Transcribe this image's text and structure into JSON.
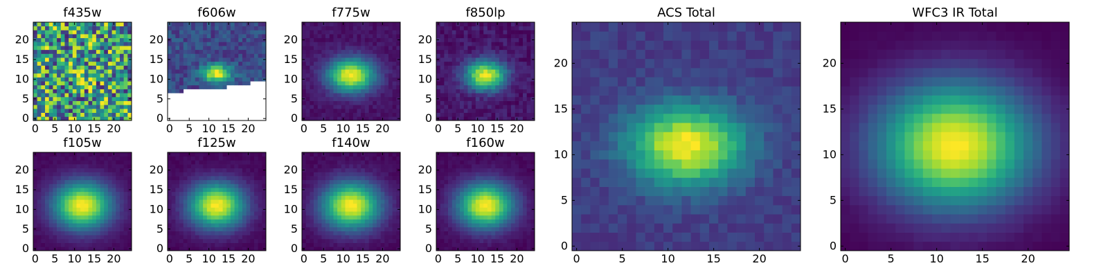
{
  "figure": {
    "colormap": "viridis",
    "colormap_stops": [
      "#440154",
      "#482878",
      "#3e4989",
      "#31688e",
      "#26828e",
      "#1f9e89",
      "#35b779",
      "#6ece58",
      "#b5de2b",
      "#fde725"
    ],
    "missing_value_color": "#ffffff"
  },
  "chart_data": [
    {
      "type": "heatmap",
      "title": "f435w",
      "xlim": [
        0,
        24
      ],
      "ylim": [
        0,
        24
      ],
      "xticks": [
        "0",
        "5",
        "10",
        "15",
        "20"
      ],
      "yticks": [
        "0",
        "5",
        "10",
        "15",
        "20"
      ],
      "grid_size": [
        25,
        25
      ],
      "peak": [
        12,
        11
      ],
      "spread": [
        2.2,
        1.6
      ],
      "noise": 0.9,
      "base": 0.55,
      "amplitude": 0.2,
      "missing_region": null,
      "seed": 7
    },
    {
      "type": "heatmap",
      "title": "f606w",
      "xlim": [
        0,
        24
      ],
      "ylim": [
        0,
        24
      ],
      "xticks": [
        "0",
        "5",
        "10",
        "15",
        "20"
      ],
      "yticks": [
        "0",
        "5",
        "10",
        "15",
        "20"
      ],
      "grid_size": [
        25,
        25
      ],
      "peak": [
        12,
        11.5
      ],
      "spread": [
        2.6,
        1.5
      ],
      "noise": 0.22,
      "base": 0.22,
      "amplitude": 0.78,
      "missing_region": {
        "below_row_by_column": [
          7,
          7,
          7,
          7,
          8,
          8,
          8,
          8,
          8,
          8,
          8,
          8,
          8,
          8,
          8,
          9,
          9,
          9,
          9,
          9,
          9,
          10,
          10,
          10,
          10
        ]
      },
      "seed": 11
    },
    {
      "type": "heatmap",
      "title": "f775w",
      "xlim": [
        0,
        24
      ],
      "ylim": [
        0,
        24
      ],
      "xticks": [
        "0",
        "5",
        "10",
        "15",
        "20"
      ],
      "yticks": [
        "0",
        "5",
        "10",
        "15",
        "20"
      ],
      "grid_size": [
        25,
        25
      ],
      "peak": [
        12,
        11
      ],
      "spread": [
        4.2,
        3.0
      ],
      "noise": 0.08,
      "base": 0.05,
      "amplitude": 0.95,
      "missing_region": null,
      "seed": 23
    },
    {
      "type": "heatmap",
      "title": "f850lp",
      "xlim": [
        0,
        24
      ],
      "ylim": [
        0,
        24
      ],
      "xticks": [
        "0",
        "5",
        "10",
        "15",
        "20"
      ],
      "yticks": [
        "0",
        "5",
        "10",
        "15",
        "20"
      ],
      "grid_size": [
        25,
        25
      ],
      "peak": [
        12,
        11
      ],
      "spread": [
        3.6,
        2.6
      ],
      "noise": 0.13,
      "base": 0.06,
      "amplitude": 0.92,
      "missing_region": null,
      "seed": 31
    },
    {
      "type": "heatmap",
      "title": "f105w",
      "xlim": [
        0,
        24
      ],
      "ylim": [
        0,
        24
      ],
      "xticks": [
        "0",
        "5",
        "10",
        "15",
        "20"
      ],
      "yticks": [
        "0",
        "5",
        "10",
        "15",
        "20"
      ],
      "grid_size": [
        25,
        25
      ],
      "peak": [
        12,
        11
      ],
      "spread": [
        5.2,
        4.2
      ],
      "noise": 0.04,
      "base": 0.02,
      "amplitude": 0.98,
      "missing_region": null,
      "seed": 41
    },
    {
      "type": "heatmap",
      "title": "f125w",
      "xlim": [
        0,
        24
      ],
      "ylim": [
        0,
        24
      ],
      "xticks": [
        "0",
        "5",
        "10",
        "15",
        "20"
      ],
      "yticks": [
        "0",
        "5",
        "10",
        "15",
        "20"
      ],
      "grid_size": [
        25,
        25
      ],
      "peak": [
        12,
        11
      ],
      "spread": [
        5.0,
        4.0
      ],
      "noise": 0.05,
      "base": 0.02,
      "amplitude": 0.98,
      "missing_region": null,
      "seed": 53
    },
    {
      "type": "heatmap",
      "title": "f140w",
      "xlim": [
        0,
        24
      ],
      "ylim": [
        0,
        24
      ],
      "xticks": [
        "0",
        "5",
        "10",
        "15",
        "20"
      ],
      "yticks": [
        "0",
        "5",
        "10",
        "15",
        "20"
      ],
      "grid_size": [
        25,
        25
      ],
      "peak": [
        12,
        11
      ],
      "spread": [
        5.2,
        4.2
      ],
      "noise": 0.05,
      "base": 0.02,
      "amplitude": 0.98,
      "missing_region": null,
      "seed": 67
    },
    {
      "type": "heatmap",
      "title": "f160w",
      "xlim": [
        0,
        24
      ],
      "ylim": [
        0,
        24
      ],
      "xticks": [
        "0",
        "5",
        "10",
        "15",
        "20"
      ],
      "yticks": [
        "0",
        "5",
        "10",
        "15",
        "20"
      ],
      "grid_size": [
        25,
        25
      ],
      "peak": [
        12,
        11
      ],
      "spread": [
        5.0,
        4.0
      ],
      "noise": 0.05,
      "base": 0.02,
      "amplitude": 0.98,
      "missing_region": null,
      "seed": 79
    },
    {
      "type": "heatmap",
      "title": "ACS Total",
      "xlim": [
        0,
        24
      ],
      "ylim": [
        0,
        24
      ],
      "xticks": [
        "0",
        "5",
        "10",
        "15",
        "20"
      ],
      "yticks": [
        "0",
        "5",
        "10",
        "15",
        "20"
      ],
      "grid_size": [
        25,
        25
      ],
      "peak": [
        12,
        11
      ],
      "spread": [
        4.4,
        3.0
      ],
      "noise": 0.11,
      "base": 0.18,
      "amplitude": 0.82,
      "missing_region": null,
      "seed": 97
    },
    {
      "type": "heatmap",
      "title": "WFC3 IR Total",
      "xlim": [
        0,
        24
      ],
      "ylim": [
        0,
        24
      ],
      "xticks": [
        "0",
        "5",
        "10",
        "15",
        "20"
      ],
      "yticks": [
        "0",
        "5",
        "10",
        "15",
        "20"
      ],
      "grid_size": [
        25,
        25
      ],
      "peak": [
        12,
        11
      ],
      "spread": [
        6.0,
        4.8
      ],
      "noise": 0.02,
      "base": 0.0,
      "amplitude": 1.0,
      "missing_region": null,
      "seed": 113
    }
  ]
}
